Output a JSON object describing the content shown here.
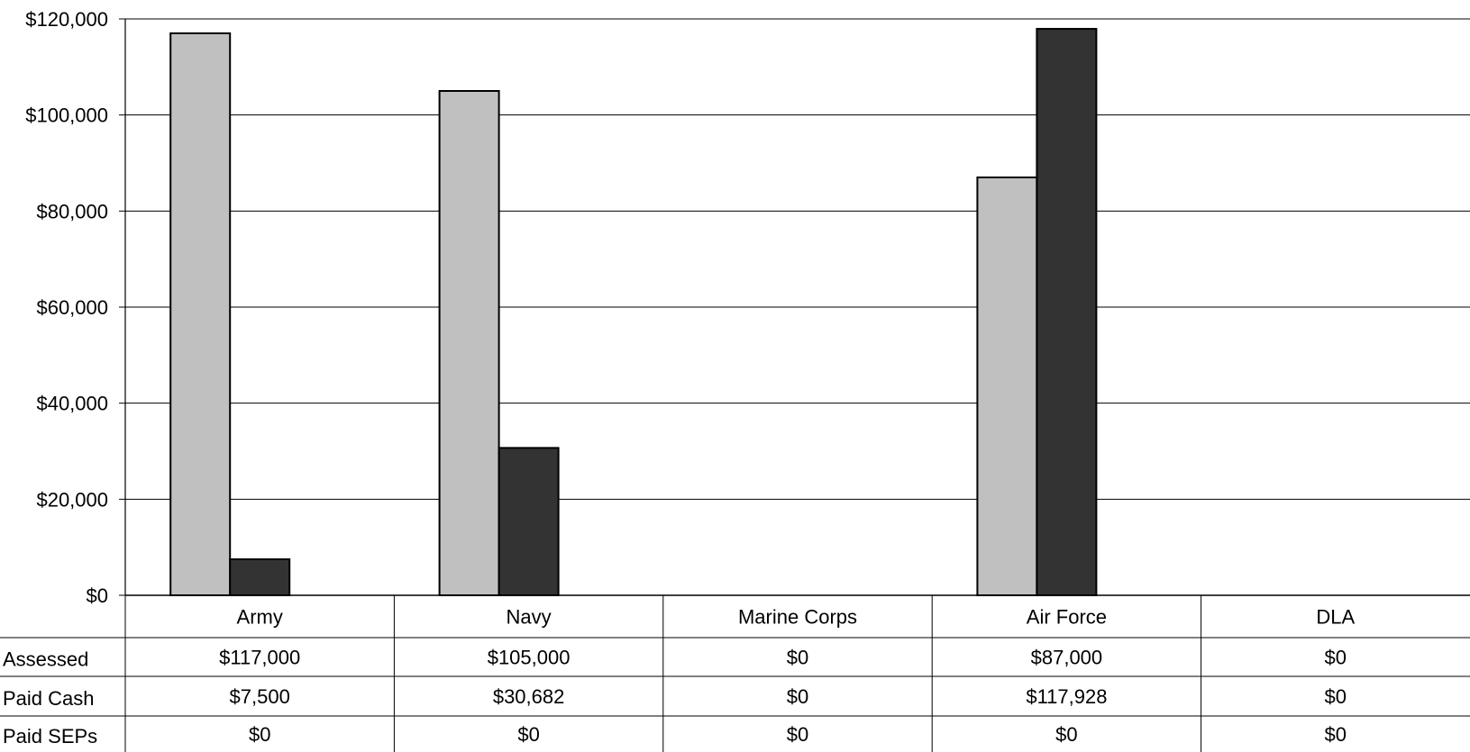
{
  "chart_data": {
    "type": "bar",
    "title": "",
    "xlabel": "",
    "ylabel": "",
    "ylim": [
      0,
      120000
    ],
    "yticks": [
      0,
      20000,
      40000,
      60000,
      80000,
      100000,
      120000
    ],
    "ytick_labels": [
      "$0",
      "$20,000",
      "$40,000",
      "$60,000",
      "$80,000",
      "$100,000",
      "$120,000"
    ],
    "grid": true,
    "categories": [
      "Army",
      "Navy",
      "Marine Corps",
      "Air Force",
      "DLA"
    ],
    "series": [
      {
        "name": "Assessed",
        "color": "#c0c0c0",
        "values": [
          117000,
          105000,
          0,
          87000,
          0
        ],
        "labels": [
          "$117,000",
          "$105,000",
          "$0",
          "$87,000",
          "$0"
        ]
      },
      {
        "name": "Paid Cash",
        "color": "#333333",
        "values": [
          7500,
          30682,
          0,
          117928,
          0
        ],
        "labels": [
          "$7,500",
          "$30,682",
          "$0",
          "$117,928",
          "$0"
        ]
      },
      {
        "name": "Paid SEPs",
        "color": "#808080",
        "values": [
          0,
          0,
          0,
          0,
          0
        ],
        "labels": [
          "$0",
          "$0",
          "$0",
          "$0",
          "$0"
        ]
      }
    ]
  }
}
